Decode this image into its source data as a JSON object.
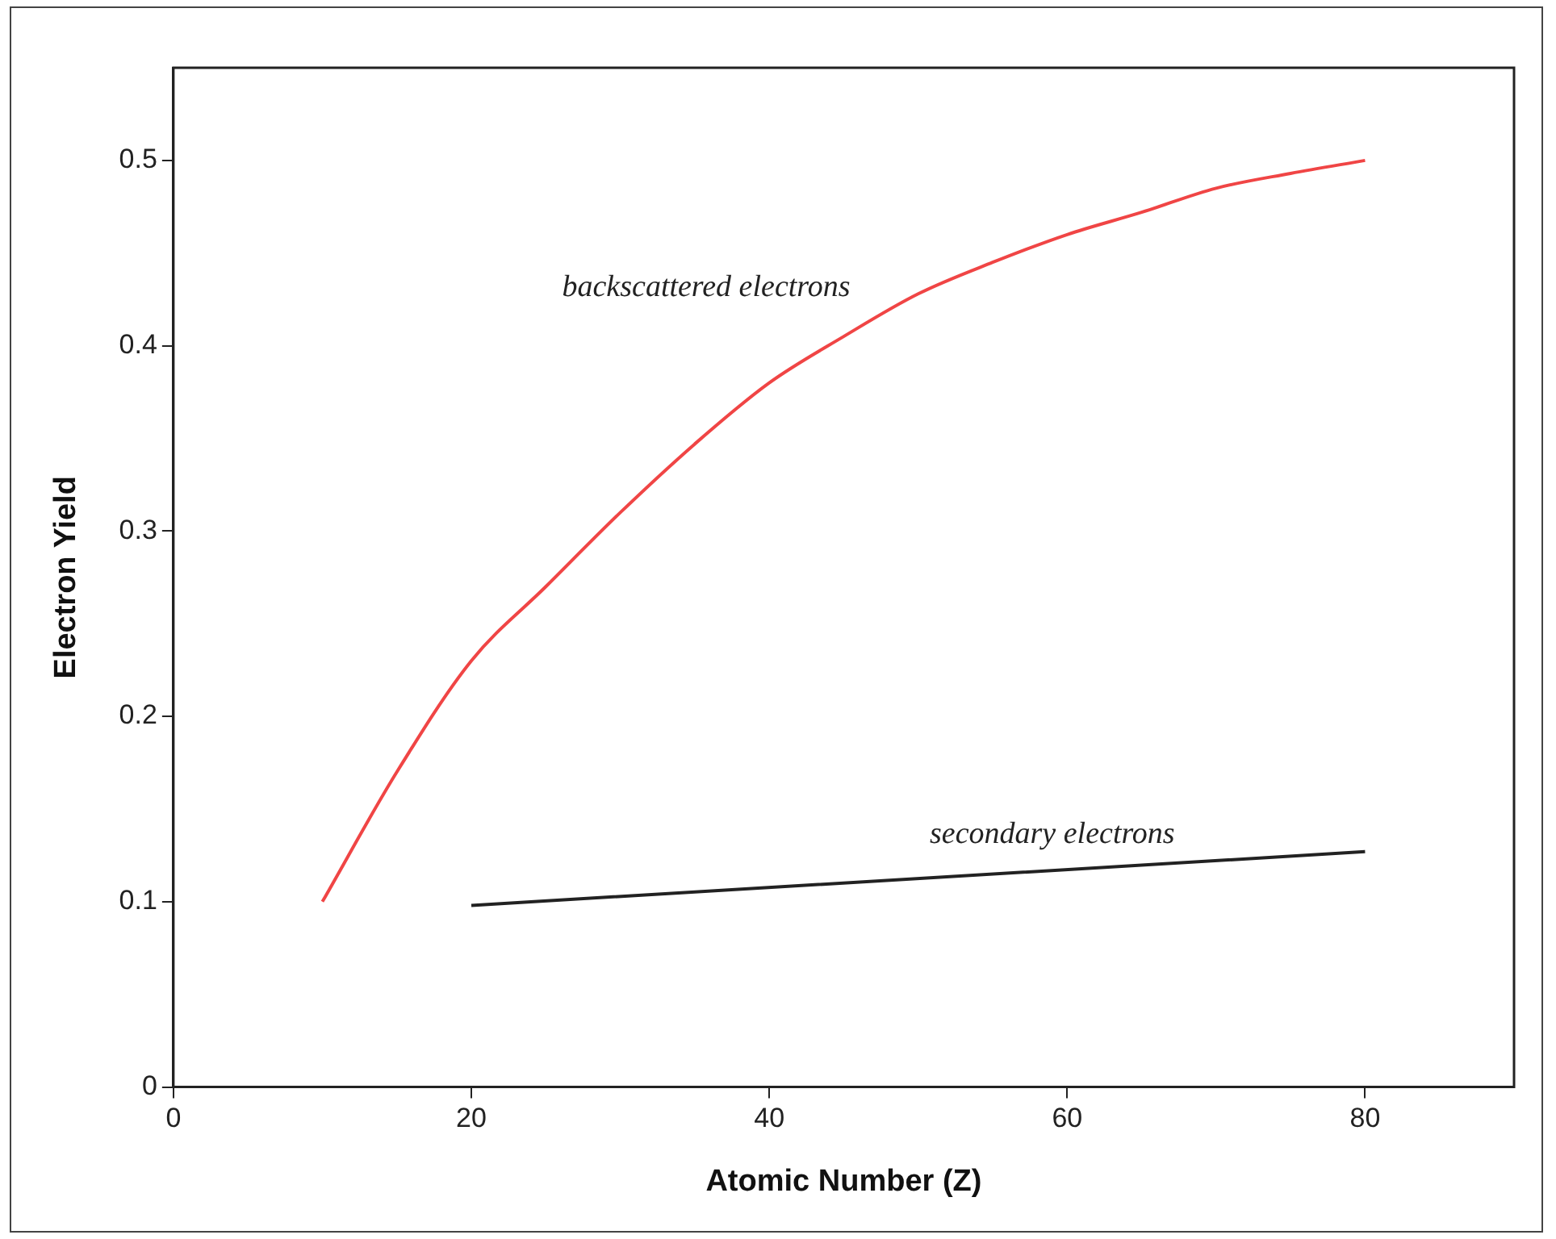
{
  "chart_data": {
    "type": "line",
    "xlabel": "Atomic Number (Z)",
    "ylabel": "Electron Yield",
    "xlim": [
      0,
      90
    ],
    "xticks": [
      0,
      20,
      40,
      60,
      80
    ],
    "ylim": [
      0,
      0.55
    ],
    "yticks": [
      0,
      0.1,
      0.2,
      0.3,
      0.4,
      0.5
    ],
    "grid": false,
    "legend": false,
    "marker": "none",
    "line_style": "solid",
    "series": [
      {
        "name": "backscattered electrons",
        "color": "#f04545",
        "x": [
          10,
          15,
          20,
          25,
          30,
          35,
          40,
          45,
          50,
          55,
          60,
          65,
          70,
          75,
          80
        ],
        "values": [
          0.1,
          0.17,
          0.23,
          0.27,
          0.31,
          0.347,
          0.38,
          0.405,
          0.428,
          0.445,
          0.46,
          0.472,
          0.485,
          0.493,
          0.5
        ]
      },
      {
        "name": "secondary electrons",
        "color": "#222222",
        "x": [
          20,
          80
        ],
        "values": [
          0.098,
          0.127
        ]
      }
    ]
  }
}
